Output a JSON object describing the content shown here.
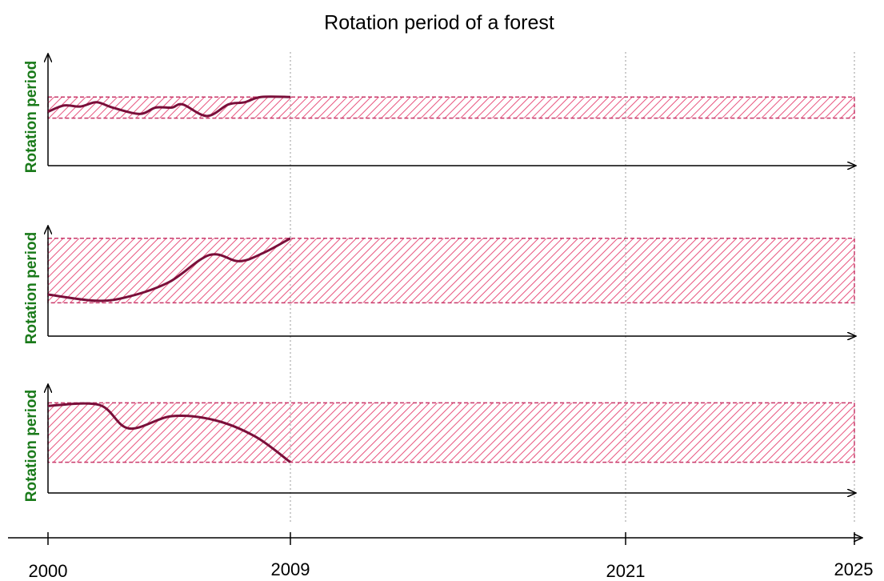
{
  "chart_data": {
    "type": "line",
    "title": "Rotation period of a forest",
    "xlim": [
      2000,
      2025
    ],
    "xticks": [
      2000,
      2009,
      2021,
      2025
    ],
    "line_color": "#7a0f3a",
    "band_color": "#c8386a",
    "panels": [
      {
        "ylabel": "Rotation period",
        "ylim": [
          0,
          100
        ],
        "band": [
          45,
          65
        ],
        "x": [
          2000,
          2000.6,
          2001.2,
          2001.8,
          2002.4,
          2003.4,
          2004,
          2004.6,
          2005,
          2005.9,
          2006.7,
          2007.3,
          2007.9,
          2009
        ],
        "values": [
          51,
          57,
          56,
          60,
          55,
          49,
          55,
          55,
          58,
          47,
          58,
          60,
          65,
          65
        ]
      },
      {
        "ylabel": "Rotation period",
        "ylim": [
          0,
          100
        ],
        "band": [
          32,
          94
        ],
        "x": [
          2000,
          2001.8,
          2003,
          2004.5,
          2006,
          2007.1,
          2008,
          2009
        ],
        "values": [
          40,
          34,
          38,
          52,
          78,
          72,
          80,
          94
        ]
      },
      {
        "ylabel": "Rotation period",
        "ylim": [
          0,
          100
        ],
        "band": [
          30,
          88
        ],
        "x": [
          2000,
          2001.9,
          2003,
          2004.6,
          2006.2,
          2007.7,
          2009
        ],
        "values": [
          85,
          86,
          63,
          75,
          71,
          55,
          30
        ]
      }
    ]
  }
}
